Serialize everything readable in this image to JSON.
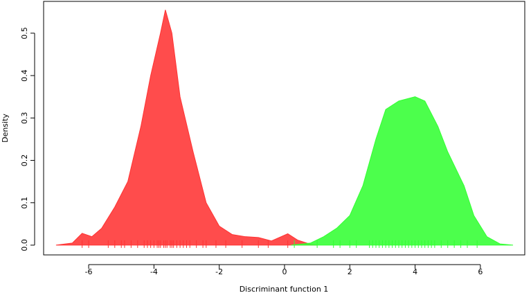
{
  "chart_data": {
    "type": "density",
    "xlabel": "Discriminant function 1",
    "ylabel": "Density",
    "xlim": [
      -7.38,
      7.36
    ],
    "ylim": [
      -0.023,
      0.575
    ],
    "xticks": [
      -6,
      -4,
      -2,
      0,
      2,
      4,
      6
    ],
    "yticks": [
      {
        "value": 0,
        "label": "0.0"
      },
      0.1,
      0.2,
      0.3,
      0.4,
      0.5
    ],
    "series": [
      {
        "color": "#ff3333",
        "x": [
          -7,
          -6.5,
          -6.2,
          -5.9,
          -5.6,
          -5.2,
          -4.8,
          -4.4,
          -4.1,
          -3.8,
          -3.65,
          -3.45,
          -3.2,
          -2.8,
          -2.4,
          -2.0,
          -1.6,
          -1.2,
          -0.8,
          -0.4,
          0.1,
          0.4,
          0.8,
          1.0
        ],
        "values": [
          0,
          0.005,
          0.028,
          0.02,
          0.04,
          0.09,
          0.15,
          0.28,
          0.4,
          0.5,
          0.555,
          0.5,
          0.35,
          0.22,
          0.1,
          0.045,
          0.025,
          0.02,
          0.018,
          0.01,
          0.027,
          0.012,
          0.002,
          0
        ],
        "rug": [
          -6.2,
          -6.0,
          -5.4,
          -5.2,
          -5.0,
          -4.9,
          -4.7,
          -4.5,
          -4.3,
          -4.2,
          -4.1,
          -4.0,
          -3.9,
          -3.85,
          -3.8,
          -3.7,
          -3.65,
          -3.6,
          -3.5,
          -3.45,
          -3.4,
          -3.3,
          -3.2,
          -3.1,
          -3.0,
          -2.9,
          -2.7,
          -2.5,
          -2.4,
          -2.1,
          -1.8,
          -1.3,
          -0.8,
          -0.5,
          0.1
        ]
      },
      {
        "color": "#33ff33",
        "x": [
          0.2,
          0.8,
          1.2,
          1.6,
          2.0,
          2.4,
          2.8,
          3.1,
          3.5,
          4.0,
          4.3,
          4.7,
          5.0,
          5.5,
          5.8,
          6.2,
          6.6,
          7.0
        ],
        "values": [
          0,
          0.005,
          0.02,
          0.04,
          0.07,
          0.14,
          0.25,
          0.32,
          0.34,
          0.35,
          0.34,
          0.28,
          0.22,
          0.14,
          0.07,
          0.02,
          0.003,
          0
        ],
        "rug": [
          0.3,
          1.0,
          1.5,
          1.7,
          2.0,
          2.2,
          2.6,
          2.7,
          2.8,
          2.9,
          3.0,
          3.1,
          3.2,
          3.3,
          3.4,
          3.5,
          3.6,
          3.7,
          3.8,
          3.9,
          4.0,
          4.1,
          4.2,
          4.3,
          4.4,
          4.5,
          4.6,
          4.8,
          5.0,
          5.2,
          5.4,
          5.6,
          5.9
        ]
      }
    ]
  }
}
